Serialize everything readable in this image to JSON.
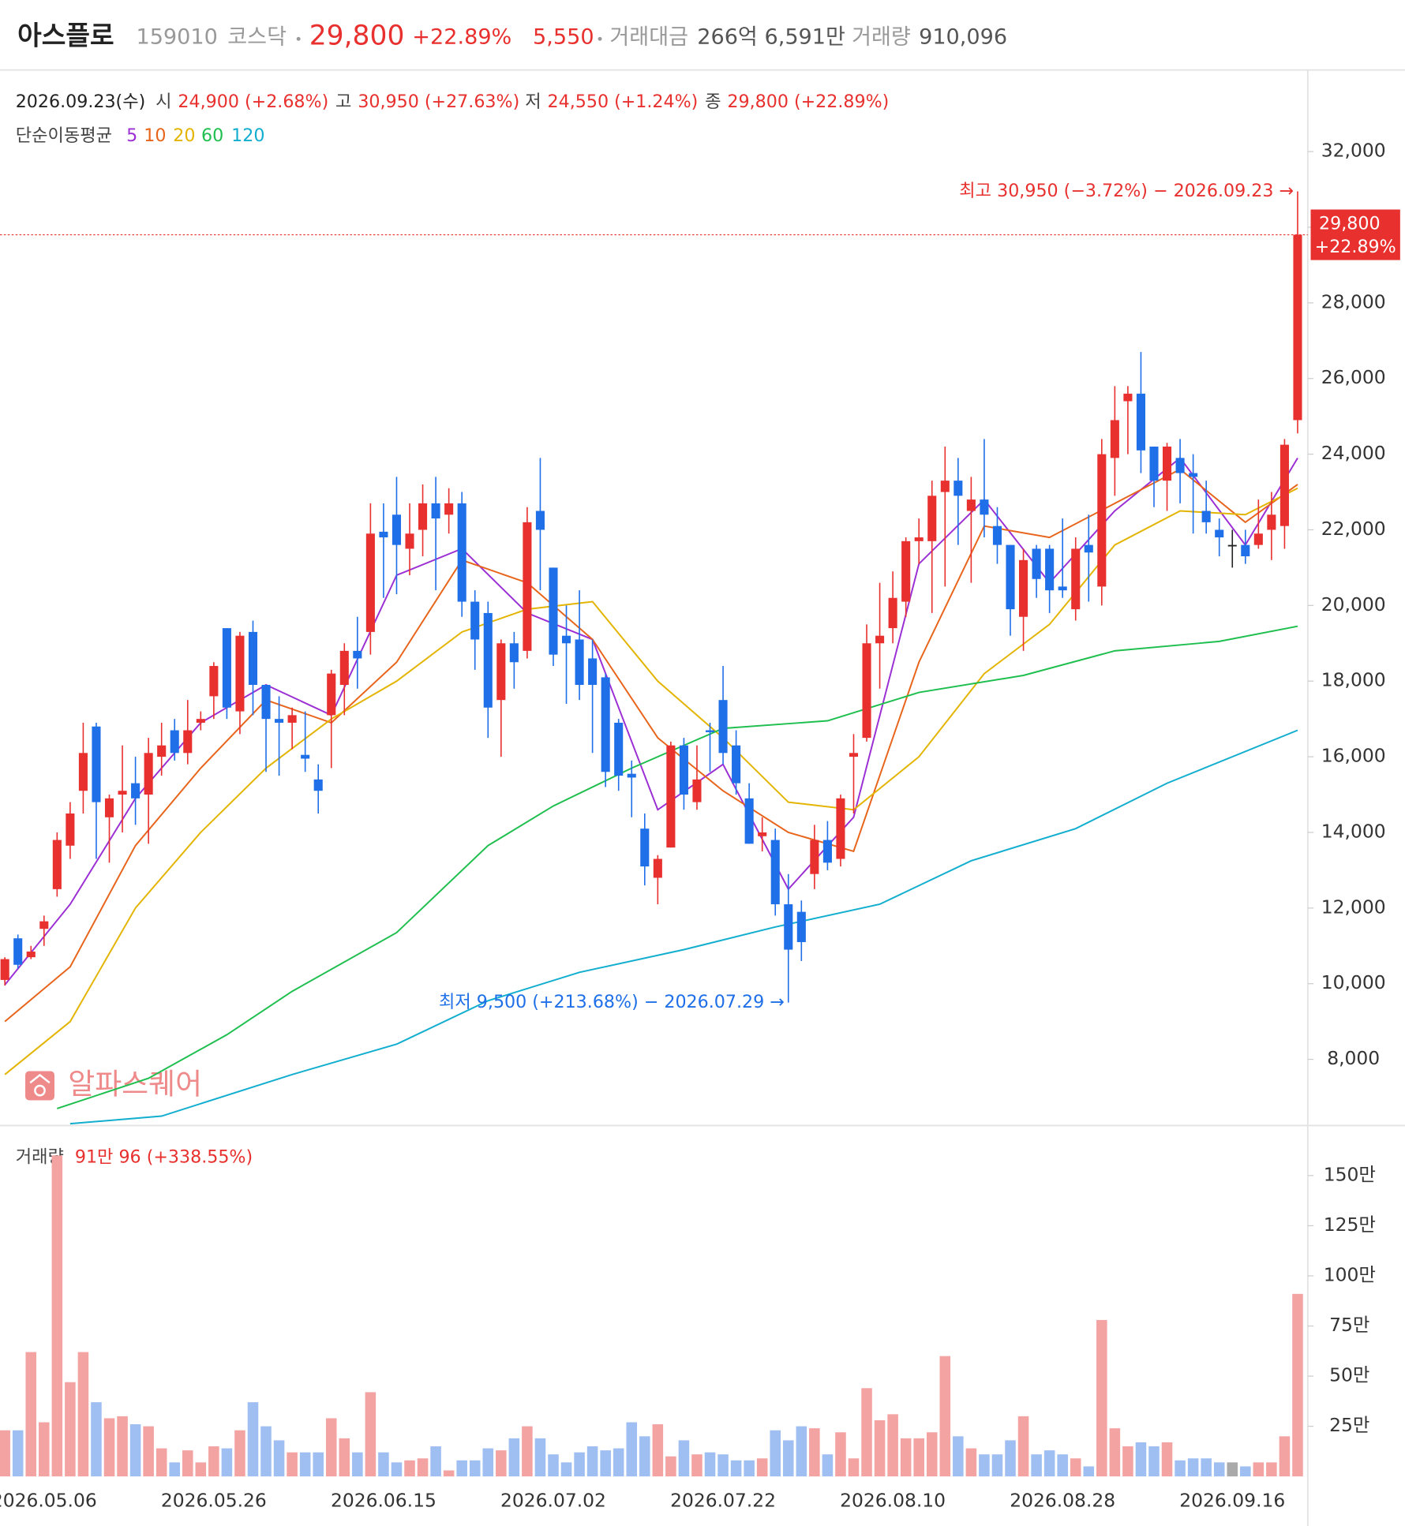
{
  "header": {
    "name": "아스플로",
    "code": "159010",
    "market": "코스닥",
    "price": "29,800",
    "change_rate": "+22.89%",
    "change": "5,550",
    "trade_value_label": "거래대금",
    "trade_value": "266억 6,591만",
    "volume_label": "거래량",
    "volume": "910,096"
  },
  "info": {
    "date": "2026.09.23(수)",
    "items": [
      {
        "label": "시",
        "value": "24,900 (+2.68%)"
      },
      {
        "label": "고",
        "value": "30,950 (+27.63%)"
      },
      {
        "label": "저",
        "value": "24,550 (+1.24%)"
      },
      {
        "label": "종",
        "value": "29,800 (+22.89%)"
      }
    ]
  },
  "watermark": "알파스퀘어",
  "chart_data": {
    "type": "candlestick",
    "categories": [
      null,
      null,
      null,
      "2026.05.06",
      null,
      null,
      null,
      null,
      null,
      null,
      null,
      null,
      null,
      null,
      null,
      null,
      "2026.05.26",
      null,
      null,
      null,
      null,
      null,
      null,
      null,
      null,
      null,
      null,
      null,
      null,
      "2026.06.15",
      null,
      null,
      null,
      null,
      null,
      null,
      null,
      null,
      null,
      null,
      null,
      null,
      "2026.07.02",
      null,
      null,
      null,
      null,
      null,
      null,
      null,
      null,
      null,
      null,
      null,
      null,
      "2026.07.22",
      null,
      null,
      null,
      null,
      null,
      null,
      null,
      null,
      null,
      null,
      null,
      null,
      "2026.08.10",
      null,
      null,
      null,
      null,
      null,
      null,
      null,
      null,
      null,
      null,
      null,
      null,
      "2026.08.28",
      null,
      null,
      null,
      null,
      null,
      null,
      null,
      null,
      null,
      null,
      null,
      null,
      "2026.09.16",
      null,
      null,
      null,
      null,
      null
    ],
    "open": [
      10100,
      11200,
      10700,
      11450,
      12500,
      13650,
      15100,
      16800,
      14400,
      15000,
      15300,
      15000,
      16000,
      16700,
      16100,
      16900,
      17600,
      19400,
      17200,
      19300,
      17900,
      17000,
      16900,
      16050,
      15400,
      17100,
      17900,
      18800,
      19300,
      21950,
      22400,
      21500,
      22000,
      22700,
      22400,
      22700,
      20100,
      19800,
      17500,
      19000,
      18800,
      22500,
      21000,
      19200,
      19100,
      18600,
      18100,
      16900,
      15550,
      14100,
      12800,
      13600,
      16300,
      14800,
      16700,
      17500,
      16300,
      14900,
      13900,
      13800,
      12100,
      11900,
      12900,
      13800,
      13300,
      16000,
      16500,
      19000,
      19400,
      20100,
      21700,
      21700,
      23000,
      23300,
      22500,
      22800,
      22100,
      21600,
      19700,
      21500,
      21500,
      20500,
      19900,
      21600,
      20500,
      23900,
      25400,
      25600,
      24200,
      23300,
      23900,
      23500,
      22500,
      22000,
      21600,
      21600,
      21600,
      22000,
      22100,
      24900
    ],
    "high": [
      10700,
      11300,
      11000,
      11800,
      14000,
      14800,
      16900,
      16900,
      15000,
      16300,
      16000,
      16500,
      16900,
      17000,
      17500,
      17200,
      18500,
      19400,
      19300,
      19600,
      17900,
      17600,
      17300,
      17200,
      15800,
      18300,
      19000,
      19700,
      22700,
      22700,
      23400,
      22700,
      23200,
      23400,
      23100,
      23000,
      20400,
      20100,
      19100,
      19300,
      22600,
      23900,
      21000,
      20000,
      20400,
      19100,
      18200,
      17000,
      15900,
      14500,
      13400,
      16400,
      16500,
      16300,
      16900,
      18400,
      16700,
      15300,
      14400,
      14100,
      12900,
      12200,
      14200,
      14300,
      15000,
      16600,
      19500,
      20600,
      20900,
      21800,
      22300,
      23300,
      24200,
      23900,
      23400,
      24400,
      22600,
      21600,
      21500,
      21600,
      21600,
      22300,
      21800,
      22400,
      24400,
      25800,
      25800,
      26700,
      24200,
      24300,
      24400,
      24000,
      23300,
      22300,
      22000,
      22000,
      22800,
      23000,
      24400,
      30950
    ],
    "low": [
      9950,
      10400,
      10650,
      11000,
      12300,
      13300,
      14500,
      13300,
      13200,
      14000,
      14200,
      13700,
      15500,
      15900,
      15800,
      16700,
      17000,
      17000,
      16600,
      17100,
      15600,
      15500,
      16200,
      15600,
      14500,
      15700,
      17100,
      17800,
      18700,
      20200,
      20300,
      20800,
      21300,
      20400,
      21900,
      19700,
      18300,
      16500,
      16000,
      17800,
      18600,
      20400,
      18400,
      17400,
      17500,
      16100,
      15200,
      15100,
      14400,
      12600,
      12100,
      13600,
      14600,
      14600,
      15600,
      15800,
      15000,
      13700,
      13500,
      11800,
      9500,
      10600,
      12500,
      13000,
      13100,
      14500,
      16400,
      17800,
      19000,
      19700,
      21100,
      19800,
      20500,
      21600,
      20600,
      21800,
      21100,
      19200,
      18800,
      20200,
      19800,
      20200,
      19600,
      20100,
      20000,
      22900,
      24000,
      23500,
      22600,
      22500,
      22700,
      21900,
      21900,
      21300,
      21000,
      21100,
      21500,
      21200,
      21500,
      24550
    ],
    "close": [
      10650,
      10500,
      10850,
      11650,
      13800,
      14500,
      16100,
      14800,
      14900,
      15100,
      14900,
      16100,
      16300,
      16100,
      16700,
      17000,
      18400,
      17300,
      19200,
      17900,
      17000,
      16900,
      17100,
      15950,
      15100,
      18200,
      18800,
      18600,
      21900,
      21800,
      21600,
      21900,
      22700,
      22300,
      22700,
      20100,
      19100,
      17300,
      19000,
      18500,
      22200,
      22000,
      18700,
      19000,
      17900,
      17900,
      15600,
      15500,
      15450,
      13100,
      13300,
      16300,
      15000,
      15400,
      16650,
      16100,
      15300,
      13700,
      14000,
      12100,
      10900,
      11100,
      13800,
      13200,
      14900,
      16100,
      19000,
      19200,
      20200,
      21700,
      21800,
      22900,
      23300,
      22900,
      22800,
      22400,
      21600,
      19900,
      21200,
      20700,
      20400,
      20400,
      21500,
      21400,
      24000,
      24900,
      25600,
      24100,
      23300,
      24200,
      23500,
      23400,
      22200,
      21800,
      21600,
      21300,
      21900,
      22400,
      24250,
      29800
    ],
    "up_color": "#e8302e",
    "down_color": "#1f6fe8",
    "flat_color": "#222222",
    "ylim": [
      6250,
      34080
    ],
    "yticks": [
      {
        "value": 8000,
        "label": "8,000"
      },
      {
        "value": 10000,
        "label": "10,000"
      },
      {
        "value": 12000,
        "label": "12,000"
      },
      {
        "value": 14000,
        "label": "14,000"
      },
      {
        "value": 16000,
        "label": "16,000"
      },
      {
        "value": 18000,
        "label": "18,000"
      },
      {
        "value": 20000,
        "label": "20,000"
      },
      {
        "value": 22000,
        "label": "22,000"
      },
      {
        "value": 24000,
        "label": "24,000"
      },
      {
        "value": 26000,
        "label": "26,000"
      },
      {
        "value": 28000,
        "label": "28,000"
      },
      {
        "value": 30000,
        "label": "30,000"
      },
      {
        "value": 32000,
        "label": "32,000"
      }
    ],
    "ma_label": "단순이동평균",
    "ma": [
      {
        "name": "5",
        "color": "#9b2fd4",
        "x": [
          0,
          5,
          10,
          15,
          20,
          25,
          30,
          35,
          40,
          45,
          50,
          55,
          60,
          65,
          70,
          75,
          80,
          85,
          90,
          95,
          99
        ],
        "values": [
          9970,
          12100,
          14900,
          16900,
          17900,
          17100,
          20800,
          21500,
          19800,
          19100,
          14600,
          15800,
          12500,
          14400,
          21100,
          22800,
          20600,
          22500,
          23900,
          21600,
          23900
        ]
      },
      {
        "name": "10",
        "color": "#e8641a",
        "x": [
          0,
          5,
          10,
          15,
          20,
          25,
          30,
          35,
          40,
          45,
          50,
          55,
          60,
          65,
          70,
          75,
          80,
          85,
          90,
          95,
          99
        ],
        "values": [
          9000,
          10450,
          13650,
          15700,
          17500,
          16900,
          18500,
          21200,
          20600,
          19100,
          16500,
          15100,
          14000,
          13500,
          18500,
          22100,
          21800,
          22700,
          23600,
          22200,
          23200
        ]
      },
      {
        "name": "20",
        "color": "#e3b400",
        "x": [
          0,
          5,
          10,
          15,
          20,
          25,
          30,
          35,
          40,
          45,
          50,
          55,
          60,
          65,
          70,
          75,
          80,
          85,
          90,
          95,
          99
        ],
        "values": [
          7600,
          9000,
          12000,
          14000,
          15700,
          17000,
          18000,
          19300,
          19900,
          20100,
          18000,
          16500,
          14800,
          14600,
          16000,
          18200,
          19500,
          21600,
          22500,
          22400,
          23100
        ]
      },
      {
        "name": "60",
        "color": "#1fbf4f",
        "x": [
          4,
          11,
          17,
          22,
          30,
          37,
          42,
          48,
          55,
          63,
          70,
          78,
          85,
          93,
          99
        ],
        "values": [
          6700,
          7500,
          8650,
          9800,
          11350,
          13650,
          14700,
          15700,
          16750,
          16950,
          17700,
          18150,
          18800,
          19050,
          19450
        ]
      },
      {
        "name": "120",
        "color": "#12aecf",
        "x": [
          5,
          12,
          22,
          30,
          37,
          44,
          52,
          59,
          67,
          74,
          82,
          89,
          99
        ],
        "values": [
          6300,
          6500,
          7600,
          8400,
          9550,
          10300,
          10900,
          11500,
          12100,
          13250,
          14100,
          15300,
          16700
        ]
      }
    ],
    "last_price_label": {
      "price": "29,800",
      "change": "+22.89%"
    },
    "annotations": [
      {
        "text": "최고 30,950 (−3.72%) − 2026.09.23 →",
        "x": 99,
        "y": 30950,
        "color": "#e8302e"
      },
      {
        "text": "최저 9,500 (+213.68%) − 2026.07.29 →",
        "x": 60,
        "y": 9500,
        "color": "#1f6fe8"
      }
    ],
    "volume": {
      "label": "거래량",
      "value_label": "91만 96 (+338.55%)",
      "values": [
        23,
        23,
        62,
        27,
        160,
        47,
        62,
        37,
        29,
        30,
        26,
        25,
        14,
        7,
        13,
        7,
        15,
        14,
        23,
        37,
        25,
        18,
        12,
        12,
        12,
        29,
        19,
        12,
        42,
        12,
        7,
        8,
        9,
        15,
        3,
        8,
        8,
        14,
        13,
        19,
        25,
        19,
        11,
        7,
        12,
        15,
        13,
        14,
        27,
        20,
        26,
        10,
        18,
        11,
        12,
        11,
        8,
        8,
        9,
        23,
        18,
        25,
        24,
        11,
        22,
        9,
        44,
        28,
        31,
        19,
        19,
        22,
        60,
        20,
        14,
        11,
        11,
        18,
        30,
        11,
        13,
        11,
        9,
        5,
        78,
        24,
        15,
        17,
        15,
        17,
        8,
        9,
        9,
        7,
        7,
        5,
        7,
        7,
        20,
        91.0096
      ],
      "up_color": "#f4a3a3",
      "down_color": "#9fbff2",
      "flat_color": "#aaaaaa",
      "ylim": [
        0,
        166.7
      ],
      "yticks": [
        {
          "value": 25,
          "label": "25만"
        },
        {
          "value": 50,
          "label": "50만"
        },
        {
          "value": 75,
          "label": "75만"
        },
        {
          "value": 100,
          "label": "100만"
        },
        {
          "value": 125,
          "label": "125만"
        },
        {
          "value": 150,
          "label": "150만"
        }
      ]
    }
  }
}
